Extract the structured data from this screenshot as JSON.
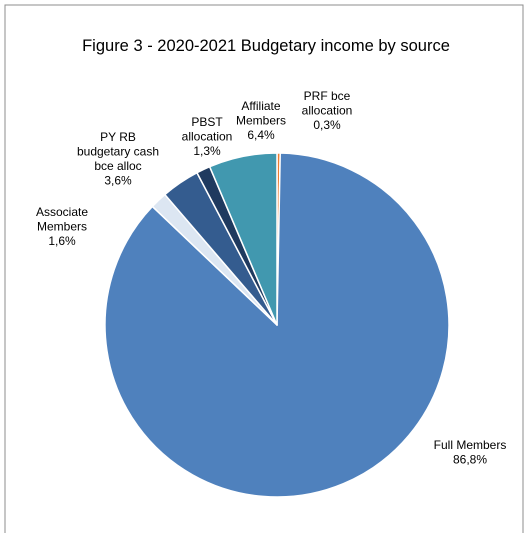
{
  "chart_data": {
    "type": "pie",
    "title": "Figure 3 - 2020-2021 Budgetary income by source",
    "start_angle_deg": 0,
    "direction": "clockwise",
    "slices": [
      {
        "label": [
          "PRF bce",
          "allocation"
        ],
        "value": 0.3,
        "display": "0,3%",
        "color": "#ED7D31"
      },
      {
        "label": [
          "Full Members"
        ],
        "value": 86.8,
        "display": "86,8%",
        "color": "#4F81BD"
      },
      {
        "label": [
          "Associate",
          "Members"
        ],
        "value": 1.6,
        "display": "1,6%",
        "color": "#DCE6F2"
      },
      {
        "label": [
          "PY RB",
          "budgetary cash",
          "bce alloc"
        ],
        "value": 3.6,
        "display": "3,6%",
        "color": "#345C8F"
      },
      {
        "label": [
          "PBST",
          "allocation"
        ],
        "value": 1.3,
        "display": "1,3%",
        "color": "#1F3A5F"
      },
      {
        "label": [
          "Affiliate",
          "Members"
        ],
        "value": 6.4,
        "display": "6,4%",
        "color": "#4198AF"
      }
    ]
  }
}
